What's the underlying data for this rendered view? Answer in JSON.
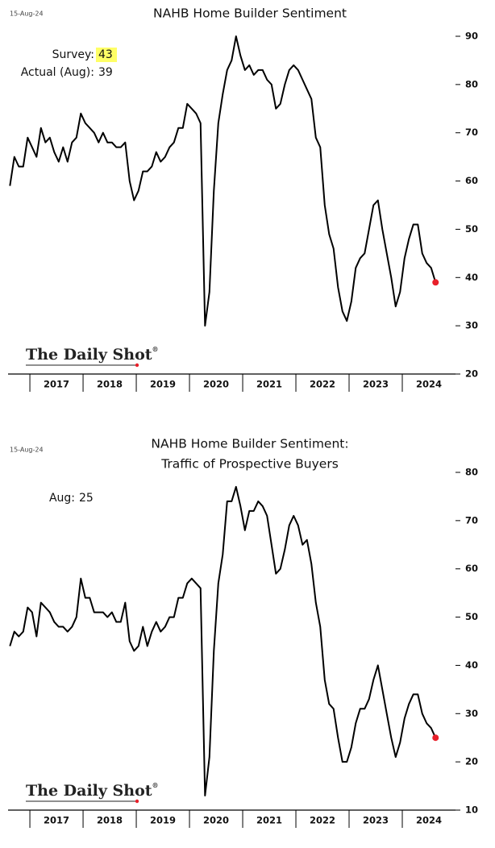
{
  "chart_data": [
    {
      "type": "line",
      "date": "15-Aug-24",
      "title": [
        "NAHB Home Builder Sentiment"
      ],
      "annotations": [
        {
          "label": "Survey:",
          "value": 43,
          "highlight": "#ffff66"
        },
        {
          "label": "Actual (Aug):",
          "value": 39
        }
      ],
      "source": "The Daily Shot",
      "source_mark": "®",
      "color": "#000000",
      "last_point_color": "#e8202a",
      "x": [
        2016.625,
        2016.708,
        2016.792,
        2016.875,
        2016.958,
        2017.042,
        2017.125,
        2017.208,
        2017.292,
        2017.375,
        2017.458,
        2017.542,
        2017.625,
        2017.708,
        2017.792,
        2017.875,
        2017.958,
        2018.042,
        2018.125,
        2018.208,
        2018.292,
        2018.375,
        2018.458,
        2018.542,
        2018.625,
        2018.708,
        2018.792,
        2018.875,
        2018.958,
        2019.042,
        2019.125,
        2019.208,
        2019.292,
        2019.375,
        2019.458,
        2019.542,
        2019.625,
        2019.708,
        2019.792,
        2019.875,
        2019.958,
        2020.042,
        2020.125,
        2020.208,
        2020.292,
        2020.375,
        2020.458,
        2020.542,
        2020.625,
        2020.708,
        2020.792,
        2020.875,
        2020.958,
        2021.042,
        2021.125,
        2021.208,
        2021.292,
        2021.375,
        2021.458,
        2021.542,
        2021.625,
        2021.708,
        2021.792,
        2021.875,
        2021.958,
        2022.042,
        2022.125,
        2022.208,
        2022.292,
        2022.375,
        2022.458,
        2022.542,
        2022.625,
        2022.708,
        2022.792,
        2022.875,
        2022.958,
        2023.042,
        2023.125,
        2023.208,
        2023.292,
        2023.375,
        2023.458,
        2023.542,
        2023.625,
        2023.708,
        2023.792,
        2023.875,
        2023.958,
        2024.042,
        2024.125,
        2024.208,
        2024.292,
        2024.375,
        2024.458,
        2024.542,
        2024.625
      ],
      "values": [
        59,
        65,
        63,
        63,
        69,
        67,
        65,
        71,
        68,
        69,
        66,
        64,
        67,
        64,
        68,
        69,
        74,
        72,
        71,
        70,
        68,
        70,
        68,
        68,
        67,
        67,
        68,
        60,
        56,
        58,
        62,
        62,
        63,
        66,
        64,
        65,
        67,
        68,
        71,
        71,
        76,
        75,
        74,
        72,
        30,
        37,
        58,
        72,
        78,
        83,
        85,
        90,
        86,
        83,
        84,
        82,
        83,
        83,
        81,
        80,
        75,
        76,
        80,
        83,
        84,
        83,
        81,
        79,
        77,
        69,
        67,
        55,
        49,
        46,
        38,
        33,
        31,
        35,
        42,
        44,
        45,
        50,
        55,
        56,
        50,
        45,
        40,
        34,
        37,
        44,
        48,
        51,
        51,
        45,
        43,
        42,
        39
      ],
      "xlim": [
        2016.59,
        2025
      ],
      "xticks": [
        {
          "value": 2017.5,
          "label": "2017"
        },
        {
          "value": 2018.5,
          "label": "2018"
        },
        {
          "value": 2019.5,
          "label": "2019"
        },
        {
          "value": 2020.5,
          "label": "2020"
        },
        {
          "value": 2021.5,
          "label": "2021"
        },
        {
          "value": 2022.5,
          "label": "2022"
        },
        {
          "value": 2023.5,
          "label": "2023"
        },
        {
          "value": 2024.5,
          "label": "2024"
        }
      ],
      "ylim": [
        20,
        90
      ],
      "yticks": [
        20,
        30,
        40,
        50,
        60,
        70,
        80,
        90
      ],
      "grid": false
    },
    {
      "type": "line",
      "date": "15-Aug-24",
      "title": [
        "NAHB Home Builder Sentiment:",
        "Traffic of Prospective Buyers"
      ],
      "annotations": [
        {
          "label": "Aug:",
          "value": 25
        }
      ],
      "source": "The Daily Shot",
      "source_mark": "®",
      "color": "#000000",
      "last_point_color": "#e8202a",
      "x": [
        2016.625,
        2016.708,
        2016.792,
        2016.875,
        2016.958,
        2017.042,
        2017.125,
        2017.208,
        2017.292,
        2017.375,
        2017.458,
        2017.542,
        2017.625,
        2017.708,
        2017.792,
        2017.875,
        2017.958,
        2018.042,
        2018.125,
        2018.208,
        2018.292,
        2018.375,
        2018.458,
        2018.542,
        2018.625,
        2018.708,
        2018.792,
        2018.875,
        2018.958,
        2019.042,
        2019.125,
        2019.208,
        2019.292,
        2019.375,
        2019.458,
        2019.542,
        2019.625,
        2019.708,
        2019.792,
        2019.875,
        2019.958,
        2020.042,
        2020.125,
        2020.208,
        2020.292,
        2020.375,
        2020.458,
        2020.542,
        2020.625,
        2020.708,
        2020.792,
        2020.875,
        2020.958,
        2021.042,
        2021.125,
        2021.208,
        2021.292,
        2021.375,
        2021.458,
        2021.542,
        2021.625,
        2021.708,
        2021.792,
        2021.875,
        2021.958,
        2022.042,
        2022.125,
        2022.208,
        2022.292,
        2022.375,
        2022.458,
        2022.542,
        2022.625,
        2022.708,
        2022.792,
        2022.875,
        2022.958,
        2023.042,
        2023.125,
        2023.208,
        2023.292,
        2023.375,
        2023.458,
        2023.542,
        2023.625,
        2023.708,
        2023.792,
        2023.875,
        2023.958,
        2024.042,
        2024.125,
        2024.208,
        2024.292,
        2024.375,
        2024.458,
        2024.542,
        2024.625
      ],
      "values": [
        44,
        47,
        46,
        47,
        52,
        51,
        46,
        53,
        52,
        51,
        49,
        48,
        48,
        47,
        48,
        50,
        58,
        54,
        54,
        51,
        51,
        51,
        50,
        51,
        49,
        49,
        53,
        45,
        43,
        44,
        48,
        44,
        47,
        49,
        47,
        48,
        50,
        50,
        54,
        54,
        57,
        58,
        57,
        56,
        13,
        21,
        43,
        57,
        63,
        74,
        74,
        77,
        73,
        68,
        72,
        72,
        74,
        73,
        71,
        65,
        59,
        60,
        64,
        69,
        71,
        69,
        65,
        66,
        61,
        53,
        48,
        37,
        32,
        31,
        25,
        20,
        20,
        23,
        28,
        31,
        31,
        33,
        37,
        40,
        35,
        30,
        25,
        21,
        24,
        29,
        32,
        34,
        34,
        30,
        28,
        27,
        25
      ],
      "xlim": [
        2016.59,
        2025
      ],
      "xticks": [
        {
          "value": 2017.5,
          "label": "2017"
        },
        {
          "value": 2018.5,
          "label": "2018"
        },
        {
          "value": 2019.5,
          "label": "2019"
        },
        {
          "value": 2020.5,
          "label": "2020"
        },
        {
          "value": 2021.5,
          "label": "2021"
        },
        {
          "value": 2022.5,
          "label": "2022"
        },
        {
          "value": 2023.5,
          "label": "2023"
        },
        {
          "value": 2024.5,
          "label": "2024"
        }
      ],
      "ylim": [
        10,
        80
      ],
      "yticks": [
        10,
        20,
        30,
        40,
        50,
        60,
        70,
        80
      ],
      "grid": false
    }
  ]
}
